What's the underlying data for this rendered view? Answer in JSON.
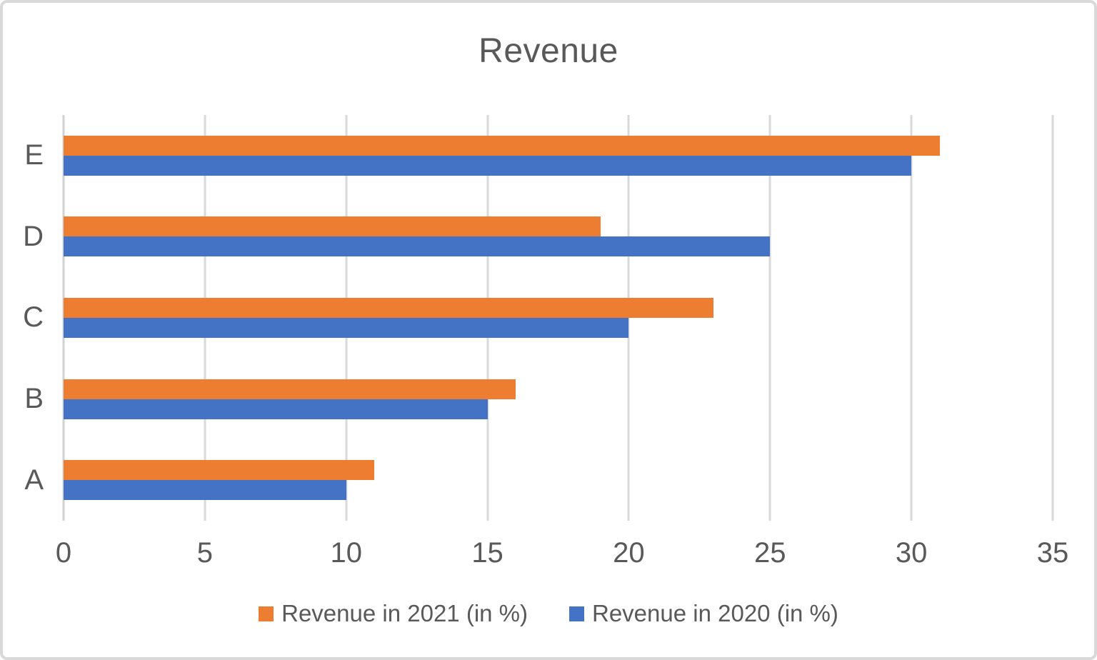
{
  "title": "Revenue",
  "colors": {
    "series_2021": "#ED7D31",
    "series_2020": "#4472C4",
    "gridline": "#d9d9d9",
    "text": "#595959",
    "frame_border": "#d9d9d9",
    "background": "#ffffff"
  },
  "chart_data": {
    "type": "bar",
    "orientation": "horizontal",
    "title": "Revenue",
    "categories": [
      "A",
      "B",
      "C",
      "D",
      "E"
    ],
    "category_display_order_top_to_bottom": [
      "E",
      "D",
      "C",
      "B",
      "A"
    ],
    "series": [
      {
        "name": "Revenue in 2021 (in %)",
        "year": "2021",
        "color": "#ED7D31",
        "values": [
          11,
          16,
          23,
          19,
          31
        ]
      },
      {
        "name": "Revenue in 2020 (in %)",
        "year": "2020",
        "color": "#4472C4",
        "values": [
          10,
          15,
          20,
          25,
          30
        ]
      }
    ],
    "xlim": [
      0,
      35
    ],
    "xticks": [
      0,
      5,
      10,
      15,
      20,
      25,
      30,
      35
    ],
    "grid": true,
    "legend_position": "bottom",
    "xlabel": "",
    "ylabel": ""
  }
}
